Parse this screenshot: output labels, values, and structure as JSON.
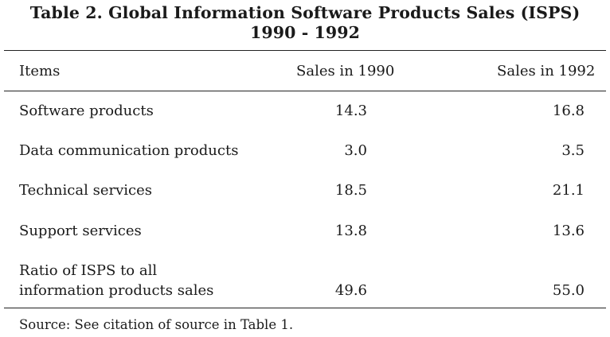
{
  "title": {
    "line1": "Table 2. Global Information Software Products Sales (ISPS)",
    "line2": "1990 - 1992"
  },
  "table": {
    "headers": [
      "Items",
      "Sales in 1990",
      "Sales in 1992"
    ],
    "rows": [
      {
        "item": "Software products",
        "y1990": "14.3",
        "y1992": "16.8"
      },
      {
        "item": "Data communication products",
        "y1990": "3.0",
        "y1992": "3.5"
      },
      {
        "item": "Technical services",
        "y1990": "18.5",
        "y1992": "21.1"
      },
      {
        "item": "Support services",
        "y1990": "13.8",
        "y1992": "13.6"
      },
      {
        "item_line1": "Ratio of ISPS to all",
        "item_line2": "information products sales",
        "y1990": "49.6",
        "y1992": "55.0"
      }
    ]
  },
  "source": "Source: See citation of source in Table 1."
}
